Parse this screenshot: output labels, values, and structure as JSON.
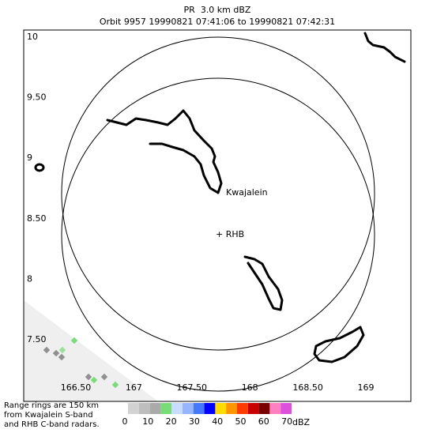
{
  "header": {
    "title": "PR  3.0 km dBZ",
    "subtitle": "Orbit 9957 19990821 07:41:06 to 19990821 07:42:31"
  },
  "axes": {
    "lat_ticks": [
      "10",
      "9.50",
      "9",
      "8.50",
      "8",
      "7.50"
    ],
    "lon_ticks": [
      "166.50",
      "167",
      "167.50",
      "168",
      "168.50",
      "169"
    ]
  },
  "labels": {
    "kwajalein": "Kwajalein",
    "rhb": "+ RHB"
  },
  "note": [
    "Range rings are 150 km",
    "from Kwajalein S-band",
    "and RHB C-band radars."
  ],
  "colorbar": {
    "ticks": [
      "0",
      "10",
      "20",
      "30",
      "40",
      "50",
      "60",
      "70"
    ],
    "unit": "dBZ"
  }
}
